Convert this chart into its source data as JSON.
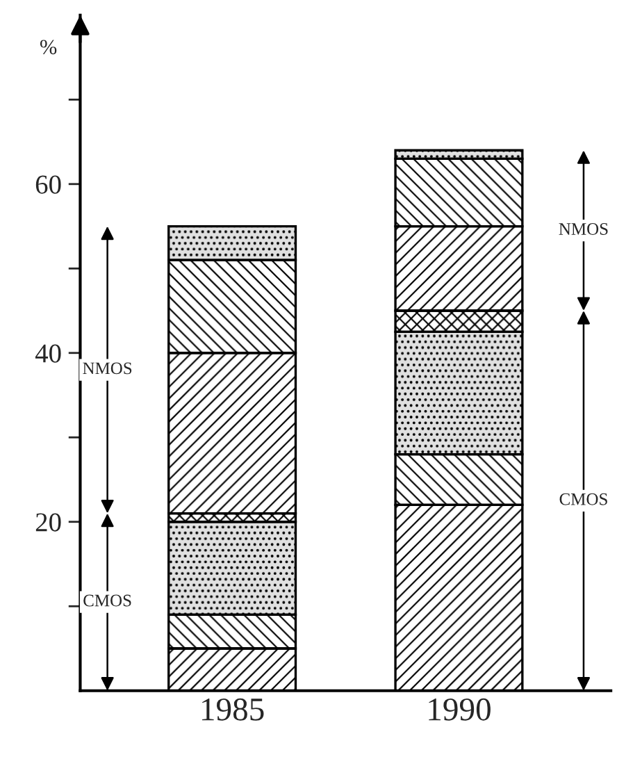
{
  "chart_data": {
    "type": "bar",
    "stacked": true,
    "ylabel": "%",
    "categories": [
      "1985",
      "1990"
    ],
    "series": [
      {
        "color": "#ffffff",
        "values": [
          5,
          22
        ]
      },
      {
        "color": "#ffffff",
        "values": [
          4,
          6
        ]
      },
      {
        "color": "#e0e0e0",
        "values": [
          11,
          14.5
        ]
      },
      {
        "color": "#ffffff",
        "values": [
          1,
          2.5
        ]
      },
      {
        "color": "#ffffff",
        "values": [
          19,
          10
        ]
      },
      {
        "color": "#ffffff",
        "values": [
          11,
          8
        ]
      },
      {
        "color": "#e0e0e0",
        "values": [
          4,
          1
        ]
      }
    ],
    "ylim": [
      0,
      80
    ],
    "yticks": [
      {
        "value": 10,
        "label": null
      },
      20,
      {
        "value": 30,
        "label": null
      },
      40,
      {
        "value": 50,
        "label": null
      },
      60,
      {
        "value": 70,
        "label": null
      }
    ],
    "annotations": [
      "CMOS",
      "NMOS",
      "CMOS",
      "NMOS"
    ],
    "grid": false
  }
}
